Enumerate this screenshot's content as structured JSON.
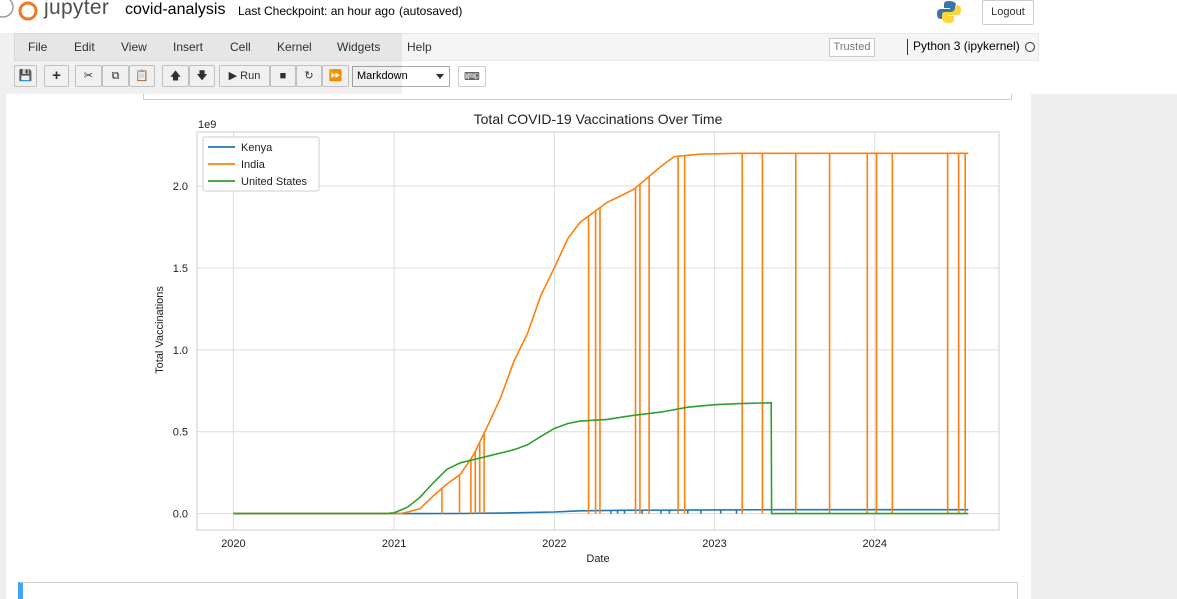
{
  "header": {
    "logo_text": "jupyter",
    "notebook_name": "covid-analysis",
    "checkpoint": "Last Checkpoint: an hour ago",
    "autosave": "(autosaved)",
    "logout_label": "Logout"
  },
  "menu": {
    "items": [
      "File",
      "Edit",
      "View",
      "Insert",
      "Cell",
      "Kernel",
      "Widgets",
      "Help"
    ],
    "trusted": "Trusted",
    "kernel_name": "Python 3 (ipykernel)"
  },
  "toolbar": {
    "run_label": "Run",
    "cell_type": "Markdown"
  },
  "chart_data": {
    "type": "line",
    "title": "Total COVID-19 Vaccinations Over Time",
    "xlabel": "Date",
    "ylabel": "Total Vaccinations",
    "offset_text": "1e9",
    "xlim": [
      "2019-10-10",
      "2024-10-10"
    ],
    "ylim": [
      -0.1,
      2.33
    ],
    "x_ticks": [
      "2020",
      "2021",
      "2022",
      "2023",
      "2024"
    ],
    "y_ticks": [
      "0.0",
      "0.5",
      "1.0",
      "1.5",
      "2.0"
    ],
    "grid": true,
    "legend_position": "top-left",
    "colors": {
      "Kenya": "#1f77b4",
      "India": "#ff7f0e",
      "United States": "#2ca02c"
    },
    "series": [
      {
        "name": "Kenya",
        "points": [
          [
            "2020-01-01",
            0
          ],
          [
            "2021-03-05",
            0
          ],
          [
            "2021-06-01",
            0.001
          ],
          [
            "2021-09-01",
            0.003
          ],
          [
            "2022-01-01",
            0.01
          ],
          [
            "2022-03-01",
            0.017
          ],
          [
            "2022-06-01",
            0.02
          ],
          [
            "2023-01-01",
            0.023
          ],
          [
            "2023-06-01",
            0.024
          ],
          [
            "2024-08-01",
            0.024
          ]
        ],
        "dropouts": [
          "2022-05-10",
          "2022-05-25",
          "2022-06-10",
          "2022-07-20",
          "2022-09-01",
          "2022-09-20",
          "2022-11-01",
          "2022-12-01",
          "2023-01-15",
          "2023-02-20"
        ]
      },
      {
        "name": "India",
        "points": [
          [
            "2020-01-01",
            0
          ],
          [
            "2021-01-16",
            0
          ],
          [
            "2021-02-01",
            0.01
          ],
          [
            "2021-03-01",
            0.03
          ],
          [
            "2021-04-01",
            0.11
          ],
          [
            "2021-05-01",
            0.18
          ],
          [
            "2021-06-01",
            0.24
          ],
          [
            "2021-07-01",
            0.36
          ],
          [
            "2021-08-01",
            0.53
          ],
          [
            "2021-09-01",
            0.71
          ],
          [
            "2021-10-01",
            0.93
          ],
          [
            "2021-11-01",
            1.1
          ],
          [
            "2021-12-01",
            1.33
          ],
          [
            "2022-01-01",
            1.5
          ],
          [
            "2022-02-01",
            1.68
          ],
          [
            "2022-03-01",
            1.78
          ],
          [
            "2022-04-01",
            1.84
          ],
          [
            "2022-05-01",
            1.9
          ],
          [
            "2022-06-01",
            1.94
          ],
          [
            "2022-07-01",
            1.98
          ],
          [
            "2022-08-01",
            2.05
          ],
          [
            "2022-09-01",
            2.12
          ],
          [
            "2022-10-01",
            2.18
          ],
          [
            "2022-12-01",
            2.195
          ],
          [
            "2023-03-01",
            2.2
          ],
          [
            "2024-08-01",
            2.2
          ]
        ],
        "dropouts": [
          "2021-04-20",
          "2021-05-30",
          "2021-06-25",
          "2021-07-05",
          "2021-07-15",
          "2021-07-25",
          "2022-03-20",
          "2022-04-05",
          "2022-04-15",
          "2022-07-05",
          "2022-07-15",
          "2022-08-05",
          "2022-10-10",
          "2022-10-25",
          "2023-03-05",
          "2023-04-20",
          "2023-07-05",
          "2023-09-20",
          "2023-12-15",
          "2024-01-05",
          "2024-02-10",
          "2024-06-15",
          "2024-07-10",
          "2024-07-25"
        ]
      },
      {
        "name": "United States",
        "points": [
          [
            "2020-01-01",
            0
          ],
          [
            "2020-12-14",
            0
          ],
          [
            "2021-01-01",
            0.005
          ],
          [
            "2021-02-01",
            0.04
          ],
          [
            "2021-03-01",
            0.1
          ],
          [
            "2021-04-01",
            0.19
          ],
          [
            "2021-05-01",
            0.27
          ],
          [
            "2021-06-01",
            0.31
          ],
          [
            "2021-07-01",
            0.33
          ],
          [
            "2021-08-01",
            0.35
          ],
          [
            "2021-09-01",
            0.37
          ],
          [
            "2021-10-01",
            0.39
          ],
          [
            "2021-11-01",
            0.42
          ],
          [
            "2021-12-01",
            0.47
          ],
          [
            "2022-01-01",
            0.52
          ],
          [
            "2022-02-01",
            0.55
          ],
          [
            "2022-03-01",
            0.565
          ],
          [
            "2022-05-01",
            0.575
          ],
          [
            "2022-07-01",
            0.6
          ],
          [
            "2022-09-01",
            0.62
          ],
          [
            "2022-11-01",
            0.65
          ],
          [
            "2023-01-01",
            0.665
          ],
          [
            "2023-03-01",
            0.672
          ],
          [
            "2023-05-01",
            0.676
          ],
          [
            "2023-05-10",
            0.677
          ],
          [
            "2023-05-11",
            0
          ],
          [
            "2024-08-01",
            0
          ]
        ]
      }
    ]
  }
}
